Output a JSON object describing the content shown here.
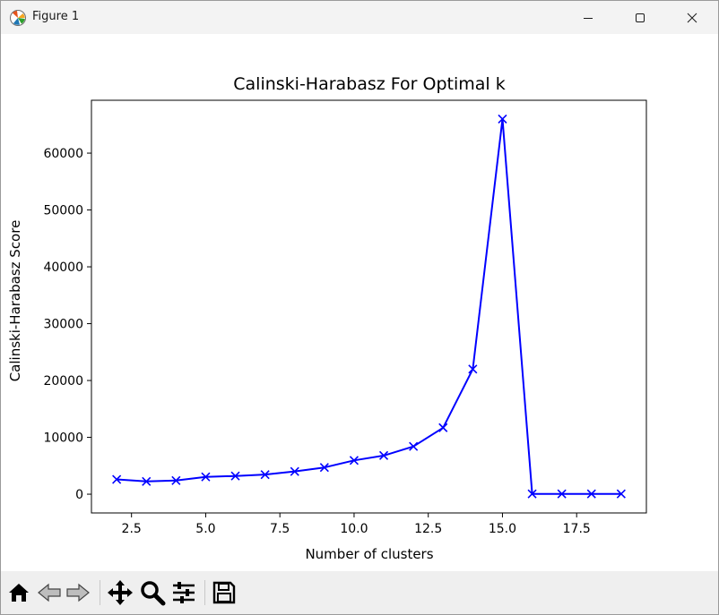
{
  "window": {
    "title": "Figure 1"
  },
  "toolbar": {
    "buttons": [
      {
        "name": "home-icon"
      },
      {
        "name": "back-arrow-icon"
      },
      {
        "name": "forward-arrow-icon"
      },
      {
        "name": "pan-icon"
      },
      {
        "name": "zoom-icon"
      },
      {
        "name": "configure-subplots-icon"
      },
      {
        "name": "save-icon"
      }
    ]
  },
  "chart_data": {
    "type": "line",
    "title": "Calinski-Harabasz For Optimal k",
    "xlabel": "Number of clusters",
    "ylabel": "Calinski-Harabasz Score",
    "xlim": [
      1.15,
      19.85
    ],
    "ylim": [
      -3300,
      69300
    ],
    "xticks": [
      2.5,
      5.0,
      7.5,
      10.0,
      12.5,
      15.0,
      17.5
    ],
    "xtick_labels": [
      "2.5",
      "5.0",
      "7.5",
      "10.0",
      "12.5",
      "15.0",
      "17.5"
    ],
    "yticks": [
      0,
      10000,
      20000,
      30000,
      40000,
      50000,
      60000
    ],
    "ytick_labels": [
      "0",
      "10000",
      "20000",
      "30000",
      "40000",
      "50000",
      "60000"
    ],
    "marker": "x",
    "color": "#0000ff",
    "series": [
      {
        "x": [
          2,
          3,
          4,
          5,
          6,
          7,
          8,
          9,
          10,
          11,
          12,
          13,
          14,
          15,
          16,
          17,
          18,
          19
        ],
        "y": [
          2600,
          2250,
          2400,
          3050,
          3200,
          3450,
          4000,
          4700,
          5950,
          6800,
          8400,
          11700,
          22000,
          66000,
          50,
          50,
          50,
          50
        ]
      }
    ]
  }
}
